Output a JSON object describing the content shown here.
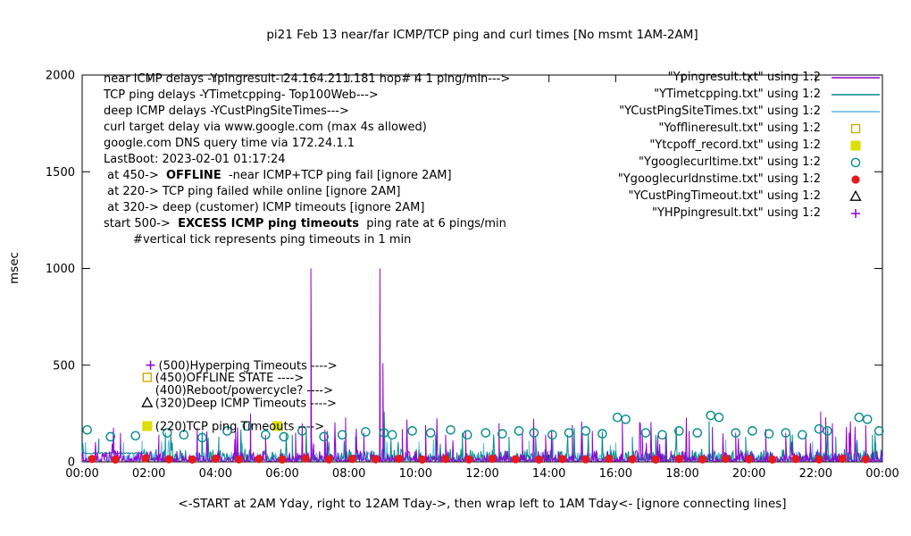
{
  "title": "pi21 Feb 13  near/far ICMP/TCP ping and curl times [No msmt 1AM-2AM]",
  "axes": {
    "y_label": "msec",
    "x_label": "<-START at 2AM Yday, right to 12AM Tday->, then wrap left to 1AM Tday<- [ignore connecting lines]"
  },
  "annotations": {
    "lines": [
      [
        {
          "t": "near ICMP delays -Ypingresult- 24.164.211.181 hop# 4 1 ping/min--->"
        }
      ],
      [
        {
          "t": "TCP ping delays -YTimetcpping- Top100Web--->"
        }
      ],
      [
        {
          "t": "deep ICMP delays -YCustPingSiteTimes--->"
        }
      ],
      [
        {
          "t": "curl target delay via www.google.com (max 4s allowed)"
        }
      ],
      [
        {
          "t": "google.com DNS query time via 172.24.1.1"
        }
      ],
      [
        {
          "t": "LastBoot: 2023-02-01 01:17:24"
        }
      ],
      [
        {
          "t": " at 450->  "
        },
        {
          "t": "OFFLINE",
          "b": true
        },
        {
          "t": "  -near ICMP+TCP ping fail [ignore 2AM]"
        }
      ],
      [
        {
          "t": " at 220-> TCP ping failed while online [ignore 2AM]"
        }
      ],
      [
        {
          "t": " at 320-> deep (customer) ICMP timeouts [ignore 2AM]"
        }
      ],
      [
        {
          "t": "start 500->  "
        },
        {
          "t": "EXCESS ICMP ping timeouts",
          "b": true
        },
        {
          "t": "  ping rate at 6 pings/min"
        }
      ],
      [
        {
          "t": "        #vertical tick represents ping timeouts in 1 min"
        }
      ]
    ]
  },
  "chart_data": {
    "type": "line",
    "x_unit": "hours (00:00 = 2AM yesterday, wraps to 1AM today)",
    "x_range": [
      0,
      24
    ],
    "y_range": [
      0,
      2000
    ],
    "x_ticks": [
      "00:00",
      "02:00",
      "04:00",
      "06:00",
      "08:00",
      "10:00",
      "12:00",
      "14:00",
      "16:00",
      "18:00",
      "20:00",
      "22:00",
      "00:00"
    ],
    "y_ticks": [
      0,
      500,
      1000,
      1500,
      2000
    ],
    "series": [
      {
        "name": "YCustPingSiteTimes.txt",
        "kind": "line",
        "color": "#58b8e8",
        "noise": {
          "seed": 29,
          "step": 0.02,
          "base": 6,
          "amp": 45,
          "exp": 3.5,
          "p_mid": 0.012,
          "mid_min": 70,
          "mid_max": 125
        },
        "spikes": [
          [
            1.8,
            110
          ],
          [
            4.8,
            100
          ],
          [
            7.6,
            115
          ],
          [
            10.1,
            105
          ],
          [
            13.4,
            110
          ],
          [
            16.0,
            100
          ],
          [
            19.3,
            115
          ],
          [
            21.9,
            105
          ],
          [
            23.2,
            100
          ]
        ]
      },
      {
        "name": "YTimetcpping.txt",
        "kind": "line",
        "color": "#008b8b",
        "flat": {
          "until": 1.85,
          "value": 45
        },
        "noise": {
          "seed": 13,
          "step": 0.02,
          "base": 8,
          "amp": 60,
          "exp": 3.5,
          "p_mid": 0.02,
          "mid_min": 90,
          "mid_max": 180
        },
        "spikes": [
          [
            0.5,
            120
          ],
          [
            2.5,
            150
          ],
          [
            4.1,
            130
          ],
          [
            6.3,
            140
          ],
          [
            8.2,
            130
          ],
          [
            9.06,
            260
          ],
          [
            10.6,
            140
          ],
          [
            11.4,
            150
          ],
          [
            12.8,
            130
          ],
          [
            13.6,
            130
          ],
          [
            15.0,
            140
          ],
          [
            16.5,
            130
          ],
          [
            17.2,
            140
          ],
          [
            18.8,
            210
          ],
          [
            19.9,
            130
          ],
          [
            21.3,
            140
          ],
          [
            22.6,
            130
          ],
          [
            23.7,
            140
          ]
        ]
      },
      {
        "name": "Ypingresult.txt",
        "kind": "line",
        "color": "#9400d3",
        "noise": {
          "seed": 7,
          "step": 0.02,
          "base": 3,
          "amp": 55,
          "exp": 4,
          "p_mid": 0.03,
          "mid_min": 90,
          "mid_max": 230
        },
        "spikes": [
          [
            1.15,
            150
          ],
          [
            2.3,
            140
          ],
          [
            3.45,
            175
          ],
          [
            4.6,
            160
          ],
          [
            5.05,
            250
          ],
          [
            5.5,
            140
          ],
          [
            6.4,
            150
          ],
          [
            6.86,
            1000
          ],
          [
            7.35,
            160
          ],
          [
            7.9,
            230
          ],
          [
            8.45,
            150
          ],
          [
            8.93,
            1000
          ],
          [
            9.02,
            510
          ],
          [
            9.6,
            170
          ],
          [
            10.3,
            190
          ],
          [
            10.9,
            140
          ],
          [
            11.5,
            160
          ],
          [
            12.5,
            200
          ],
          [
            13.2,
            150
          ],
          [
            13.9,
            140
          ],
          [
            14.7,
            190
          ],
          [
            15.3,
            160
          ],
          [
            16.2,
            210
          ],
          [
            16.8,
            150
          ],
          [
            17.5,
            140
          ],
          [
            18.2,
            160
          ],
          [
            18.9,
            180
          ],
          [
            19.6,
            150
          ],
          [
            20.5,
            170
          ],
          [
            21.1,
            150
          ],
          [
            21.7,
            140
          ],
          [
            22.15,
            260
          ],
          [
            22.3,
            230
          ],
          [
            22.5,
            200
          ],
          [
            23.0,
            150
          ],
          [
            23.5,
            190
          ]
        ]
      },
      {
        "name": "Yofflineresult.txt",
        "kind": "points",
        "marker": "open-square",
        "color": "#ccaa00",
        "points": [
          [
            1.95,
            437
          ]
        ]
      },
      {
        "name": "Ytcpoff_record.txt",
        "kind": "points",
        "marker": "filled-square",
        "color": "#dddd00",
        "points": [
          [
            1.95,
            185
          ],
          [
            5.85,
            185
          ]
        ]
      },
      {
        "name": "Ygooglecurltime.txt",
        "kind": "points",
        "marker": "open-circle",
        "color": "#008b8b",
        "points": [
          [
            0.15,
            165
          ],
          [
            0.85,
            130
          ],
          [
            1.6,
            135
          ],
          [
            2.55,
            150
          ],
          [
            3.05,
            140
          ],
          [
            3.6,
            125
          ],
          [
            4.35,
            160
          ],
          [
            4.95,
            185
          ],
          [
            5.5,
            140
          ],
          [
            6.05,
            130
          ],
          [
            6.6,
            160
          ],
          [
            7.25,
            130
          ],
          [
            7.8,
            140
          ],
          [
            8.5,
            155
          ],
          [
            9.05,
            150
          ],
          [
            9.3,
            140
          ],
          [
            9.9,
            160
          ],
          [
            10.45,
            150
          ],
          [
            11.05,
            165
          ],
          [
            11.55,
            140
          ],
          [
            12.1,
            150
          ],
          [
            12.6,
            145
          ],
          [
            13.1,
            160
          ],
          [
            13.55,
            150
          ],
          [
            14.1,
            140
          ],
          [
            14.6,
            150
          ],
          [
            15.1,
            160
          ],
          [
            15.6,
            145
          ],
          [
            16.05,
            230
          ],
          [
            16.3,
            220
          ],
          [
            16.9,
            150
          ],
          [
            17.4,
            140
          ],
          [
            17.9,
            160
          ],
          [
            18.45,
            150
          ],
          [
            18.85,
            240
          ],
          [
            19.1,
            230
          ],
          [
            19.6,
            150
          ],
          [
            20.1,
            160
          ],
          [
            20.6,
            145
          ],
          [
            21.1,
            150
          ],
          [
            21.6,
            140
          ],
          [
            22.1,
            170
          ],
          [
            22.35,
            160
          ],
          [
            23.3,
            230
          ],
          [
            23.55,
            220
          ],
          [
            23.9,
            160
          ]
        ]
      },
      {
        "name": "Ygooglecurldnstime.txt",
        "kind": "points",
        "marker": "filled-circle",
        "color": "#e41a1c",
        "points": [
          [
            0.3,
            15
          ],
          [
            1.0,
            12
          ],
          [
            1.9,
            18
          ],
          [
            2.6,
            14
          ],
          [
            3.3,
            12
          ],
          [
            4.0,
            16
          ],
          [
            4.7,
            13
          ],
          [
            5.3,
            15
          ],
          [
            6.0,
            12
          ],
          [
            6.7,
            17
          ],
          [
            7.4,
            13
          ],
          [
            8.1,
            15
          ],
          [
            8.8,
            14
          ],
          [
            9.5,
            16
          ],
          [
            10.2,
            12
          ],
          [
            10.9,
            15
          ],
          [
            11.6,
            13
          ],
          [
            12.3,
            16
          ],
          [
            13.0,
            14
          ],
          [
            13.7,
            12
          ],
          [
            14.4,
            15
          ],
          [
            15.1,
            13
          ],
          [
            15.8,
            16
          ],
          [
            16.5,
            14
          ],
          [
            17.2,
            12
          ],
          [
            17.9,
            15
          ],
          [
            18.6,
            13
          ],
          [
            19.3,
            16
          ],
          [
            20.0,
            14
          ],
          [
            20.7,
            12
          ],
          [
            21.4,
            15
          ],
          [
            22.1,
            13
          ],
          [
            22.8,
            16
          ],
          [
            23.5,
            14
          ]
        ]
      },
      {
        "name": "YCustPingTimeout.txt",
        "kind": "points",
        "marker": "open-triangle",
        "color": "#000000",
        "points": [
          [
            1.95,
            305
          ]
        ]
      },
      {
        "name": "YHPpingresult.txt",
        "kind": "points",
        "marker": "plus",
        "color": "#9400d3",
        "points": [
          [
            2.05,
            500
          ]
        ]
      }
    ],
    "callouts": [
      {
        "x": 2.05,
        "y": 500,
        "text": "(500)Hyperping Timeouts ---->"
      },
      {
        "x": 1.95,
        "y": 437,
        "text": "(450)OFFLINE STATE ---->"
      },
      {
        "x": 1.95,
        "y": 372,
        "text": "(400)Reboot/powercycle? ---->"
      },
      {
        "x": 1.95,
        "y": 305,
        "text": "(320)Deep ICMP Timeouts ---->"
      },
      {
        "x": 1.95,
        "y": 185,
        "text": "(220)TCP ping Timeouts ---->"
      }
    ],
    "legend": [
      {
        "label": "\"Ypingresult.txt\" using 1:2",
        "swatch": "line",
        "color": "#9400d3"
      },
      {
        "label": "\"YTimetcpping.txt\" using 1:2",
        "swatch": "line",
        "color": "#008b8b"
      },
      {
        "label": "\"YCustPingSiteTimes.txt\" using 1:2",
        "swatch": "line",
        "color": "#58b8e8"
      },
      {
        "label": "\"Yofflineresult.txt\" using 1:2",
        "swatch": "open-square",
        "color": "#ccaa00"
      },
      {
        "label": "\"Ytcpoff_record.txt\" using 1:2",
        "swatch": "filled-square",
        "color": "#dddd00"
      },
      {
        "label": "\"Ygooglecurltime.txt\" using 1:2",
        "swatch": "open-circle",
        "color": "#008b8b"
      },
      {
        "label": "\"Ygooglecurldnstime.txt\" using 1:2",
        "swatch": "filled-circle",
        "color": "#e41a1c"
      },
      {
        "label": "\"YCustPingTimeout.txt\" using 1:2",
        "swatch": "open-triangle",
        "color": "#000000"
      },
      {
        "label": "\"YHPpingresult.txt\" using 1:2",
        "swatch": "plus",
        "color": "#9400d3"
      }
    ]
  }
}
